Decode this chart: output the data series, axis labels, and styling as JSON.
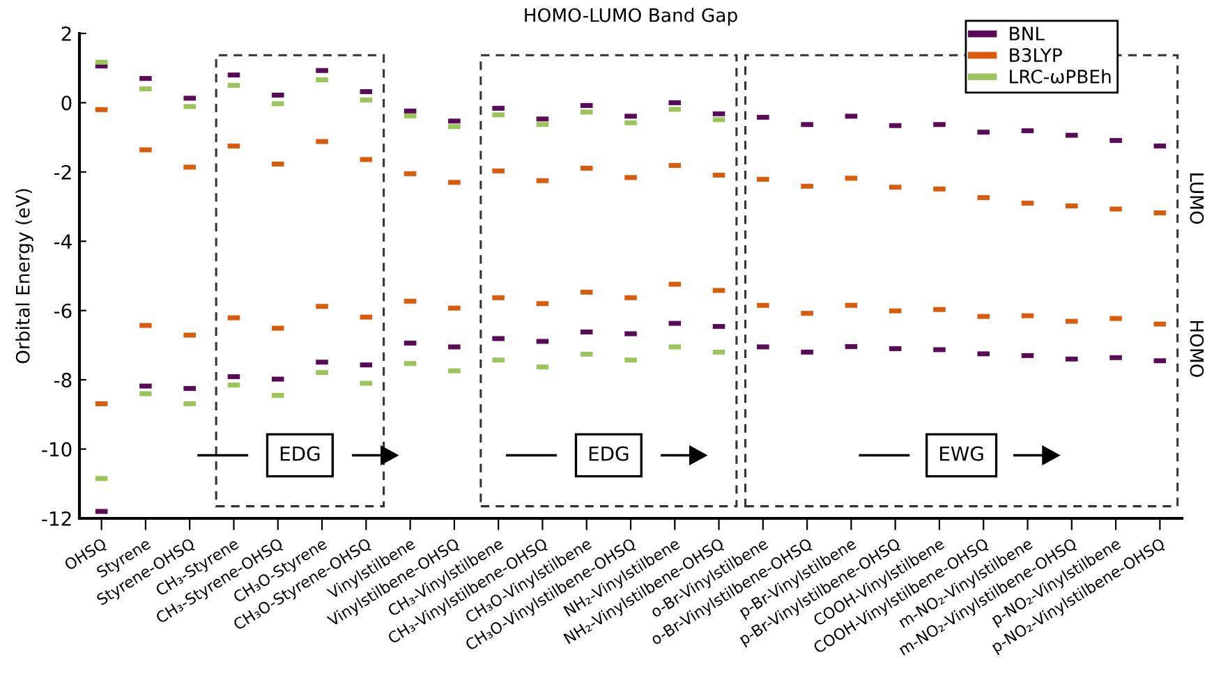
{
  "chart_data": {
    "type": "scatter",
    "title": "HOMO-LUMO Band Gap",
    "ylabel": "Orbital Energy (eV)",
    "categories": [
      "OHSQ",
      "Styrene",
      "Styrene-OHSQ",
      "CH₃-Styrene",
      "CH₃-Styrene-OHSQ",
      "CH₃O-Styrene",
      "CH₃O-Styrene-OHSQ",
      "Vinylstilbene",
      "Vinylstilbene-OHSQ",
      "CH₃-Vinylstilbene",
      "CH₃-Vinylstilbene-OHSQ",
      "CH₃O-Vinylstilbene",
      "CH₃O-Vinylstilbene-OHSQ",
      "NH₂-Vinylstilbene",
      "NH₂-Vinylstilbene-OHSQ",
      "o-Br-Vinylstilbene",
      "o-Br-Vinylstilbene-OHSQ",
      "p-Br-Vinylstilbene",
      "p-Br-Vinylstilbene-OHSQ",
      "COOH-Vinylstilbene",
      "COOH-Vinylstilbene-OHSQ",
      "m-NO₂-Vinylstilbene",
      "m-NO₂-Vinylstilbene-OHSQ",
      "p-NO₂-Vinylstilbene",
      "p-NO₂-Vinylstilbene-OHSQ"
    ],
    "series": [
      {
        "name": "BNL",
        "color": "#5a0b57",
        "x": [
          "OHSQ",
          "Styrene",
          "Styrene-OHSQ",
          "CH₃-Styrene",
          "CH₃-Styrene-OHSQ",
          "CH₃O-Styrene",
          "CH₃O-Styrene-OHSQ",
          "Vinylstilbene",
          "Vinylstilbene-OHSQ",
          "CH₃-Vinylstilbene",
          "CH₃-Vinylstilbene-OHSQ",
          "CH₃O-Vinylstilbene",
          "CH₃O-Vinylstilbene-OHSQ",
          "NH₂-Vinylstilbene",
          "NH₂-Vinylstilbene-OHSQ",
          "o-Br-Vinylstilbene",
          "o-Br-Vinylstilbene-OHSQ",
          "p-Br-Vinylstilbene",
          "p-Br-Vinylstilbene-OHSQ",
          "COOH-Vinylstilbene",
          "COOH-Vinylstilbene-OHSQ",
          "m-NO₂-Vinylstilbene",
          "m-NO₂-Vinylstilbene-OHSQ",
          "p-NO₂-Vinylstilbene",
          "p-NO₂-Vinylstilbene-OHSQ",
          "OHSQ",
          "Styrene",
          "Styrene-OHSQ",
          "CH₃-Styrene",
          "CH₃-Styrene-OHSQ",
          "CH₃O-Styrene",
          "CH₃O-Styrene-OHSQ",
          "Vinylstilbene",
          "Vinylstilbene-OHSQ",
          "CH₃-Vinylstilbene",
          "CH₃-Vinylstilbene-OHSQ",
          "CH₃O-Vinylstilbene",
          "CH₃O-Vinylstilbene-OHSQ",
          "NH₂-Vinylstilbene",
          "NH₂-Vinylstilbene-OHSQ",
          "o-Br-Vinylstilbene",
          "o-Br-Vinylstilbene-OHSQ",
          "p-Br-Vinylstilbene",
          "p-Br-Vinylstilbene-OHSQ",
          "COOH-Vinylstilbene",
          "COOH-Vinylstilbene-OHSQ",
          "m-NO₂-Vinylstilbene",
          "m-NO₂-Vinylstilbene-OHSQ",
          "p-NO₂-Vinylstilbene",
          "p-NO₂-Vinylstilbene-OHSQ"
        ],
        "values": [
          1.06,
          0.7,
          0.13,
          0.8,
          0.22,
          0.93,
          0.32,
          -0.24,
          -0.53,
          -0.16,
          -0.47,
          -0.08,
          -0.39,
          0.0,
          -0.32,
          -0.42,
          -0.63,
          -0.39,
          -0.66,
          -0.63,
          -0.85,
          -0.81,
          -0.94,
          -1.09,
          -1.25,
          -11.8,
          -8.18,
          -8.25,
          -7.91,
          -7.98,
          -7.49,
          -7.57,
          -6.94,
          -7.05,
          -6.81,
          -6.89,
          -6.62,
          -6.67,
          -6.37,
          -6.46,
          -7.05,
          -7.2,
          -7.04,
          -7.1,
          -7.13,
          -7.25,
          -7.3,
          -7.4,
          -7.36,
          -7.45
        ]
      },
      {
        "name": "B3LYP",
        "color": "#d95c0c",
        "x": [
          "OHSQ",
          "Styrene",
          "Styrene-OHSQ",
          "CH₃-Styrene",
          "CH₃-Styrene-OHSQ",
          "CH₃O-Styrene",
          "CH₃O-Styrene-OHSQ",
          "Vinylstilbene",
          "Vinylstilbene-OHSQ",
          "CH₃-Vinylstilbene",
          "CH₃-Vinylstilbene-OHSQ",
          "CH₃O-Vinylstilbene",
          "CH₃O-Vinylstilbene-OHSQ",
          "NH₂-Vinylstilbene",
          "NH₂-Vinylstilbene-OHSQ",
          "o-Br-Vinylstilbene",
          "o-Br-Vinylstilbene-OHSQ",
          "p-Br-Vinylstilbene",
          "p-Br-Vinylstilbene-OHSQ",
          "COOH-Vinylstilbene",
          "COOH-Vinylstilbene-OHSQ",
          "m-NO₂-Vinylstilbene",
          "m-NO₂-Vinylstilbene-OHSQ",
          "p-NO₂-Vinylstilbene",
          "p-NO₂-Vinylstilbene-OHSQ",
          "OHSQ",
          "Styrene",
          "Styrene-OHSQ",
          "CH₃-Styrene",
          "CH₃-Styrene-OHSQ",
          "CH₃O-Styrene",
          "CH₃O-Styrene-OHSQ",
          "Vinylstilbene",
          "Vinylstilbene-OHSQ",
          "CH₃-Vinylstilbene",
          "CH₃-Vinylstilbene-OHSQ",
          "CH₃O-Vinylstilbene",
          "CH₃O-Vinylstilbene-OHSQ",
          "NH₂-Vinylstilbene",
          "NH₂-Vinylstilbene-OHSQ",
          "o-Br-Vinylstilbene",
          "o-Br-Vinylstilbene-OHSQ",
          "p-Br-Vinylstilbene",
          "p-Br-Vinylstilbene-OHSQ",
          "COOH-Vinylstilbene",
          "COOH-Vinylstilbene-OHSQ",
          "m-NO₂-Vinylstilbene",
          "m-NO₂-Vinylstilbene-OHSQ",
          "p-NO₂-Vinylstilbene",
          "p-NO₂-Vinylstilbene-OHSQ"
        ],
        "values": [
          -0.2,
          -1.36,
          -1.86,
          -1.25,
          -1.77,
          -1.12,
          -1.64,
          -2.05,
          -2.3,
          -1.97,
          -2.25,
          -1.89,
          -2.16,
          -1.81,
          -2.09,
          -2.21,
          -2.41,
          -2.18,
          -2.44,
          -2.49,
          -2.74,
          -2.9,
          -2.98,
          -3.07,
          -3.18,
          -8.69,
          -6.43,
          -6.71,
          -6.21,
          -6.51,
          -5.88,
          -6.19,
          -5.73,
          -5.93,
          -5.63,
          -5.8,
          -5.47,
          -5.63,
          -5.24,
          -5.42,
          -5.85,
          -6.08,
          -5.85,
          -6.01,
          -5.97,
          -6.17,
          -6.15,
          -6.31,
          -6.23,
          -6.39
        ]
      },
      {
        "name": "LRC-ωPBEh",
        "color": "#9bc45a",
        "x": [
          "OHSQ",
          "Styrene",
          "Styrene-OHSQ",
          "CH₃-Styrene",
          "CH₃-Styrene-OHSQ",
          "CH₃O-Styrene",
          "CH₃O-Styrene-OHSQ",
          "Vinylstilbene",
          "Vinylstilbene-OHSQ",
          "CH₃-Vinylstilbene",
          "CH₃-Vinylstilbene-OHSQ",
          "CH₃O-Vinylstilbene",
          "CH₃O-Vinylstilbene-OHSQ",
          "NH₂-Vinylstilbene",
          "NH₂-Vinylstilbene-OHSQ",
          "OHSQ",
          "Styrene",
          "Styrene-OHSQ",
          "CH₃-Styrene",
          "CH₃-Styrene-OHSQ",
          "CH₃O-Styrene",
          "CH₃O-Styrene-OHSQ",
          "Vinylstilbene",
          "Vinylstilbene-OHSQ",
          "CH₃-Vinylstilbene",
          "CH₃-Vinylstilbene-OHSQ",
          "CH₃O-Vinylstilbene",
          "CH₃O-Vinylstilbene-OHSQ",
          "NH₂-Vinylstilbene",
          "NH₂-Vinylstilbene-OHSQ"
        ],
        "values": [
          1.17,
          0.4,
          -0.11,
          0.5,
          -0.03,
          0.66,
          0.08,
          -0.38,
          -0.69,
          -0.35,
          -0.63,
          -0.27,
          -0.58,
          -0.19,
          -0.49,
          -10.85,
          -8.4,
          -8.69,
          -8.15,
          -8.45,
          -7.79,
          -8.1,
          -7.53,
          -7.74,
          -7.43,
          -7.63,
          -7.26,
          -7.43,
          -7.05,
          -7.2
        ]
      }
    ],
    "ylim": [
      -12,
      2
    ],
    "yticks": [
      -12,
      -10,
      -8,
      -6,
      -4,
      -2,
      0,
      2
    ],
    "legend": "top right",
    "bands": [
      {
        "axis": "x",
        "from": "CH₃-Styrene",
        "to": "CH₃O-Styrene-OHSQ",
        "label": "EDG",
        "color": "#ffffff"
      },
      {
        "axis": "x",
        "from": "CH₃-Vinylstilbene",
        "to": "NH₂-Vinylstilbene-OHSQ",
        "label": "EDG",
        "color": "#ffffff"
      },
      {
        "axis": "x",
        "from": "o-Br-Vinylstilbene",
        "to": "p-NO₂-Vinylstilbene-OHSQ",
        "label": "EWG",
        "color": "#ffffff"
      }
    ],
    "annotations": [
      "LUMO",
      "HOMO"
    ]
  }
}
